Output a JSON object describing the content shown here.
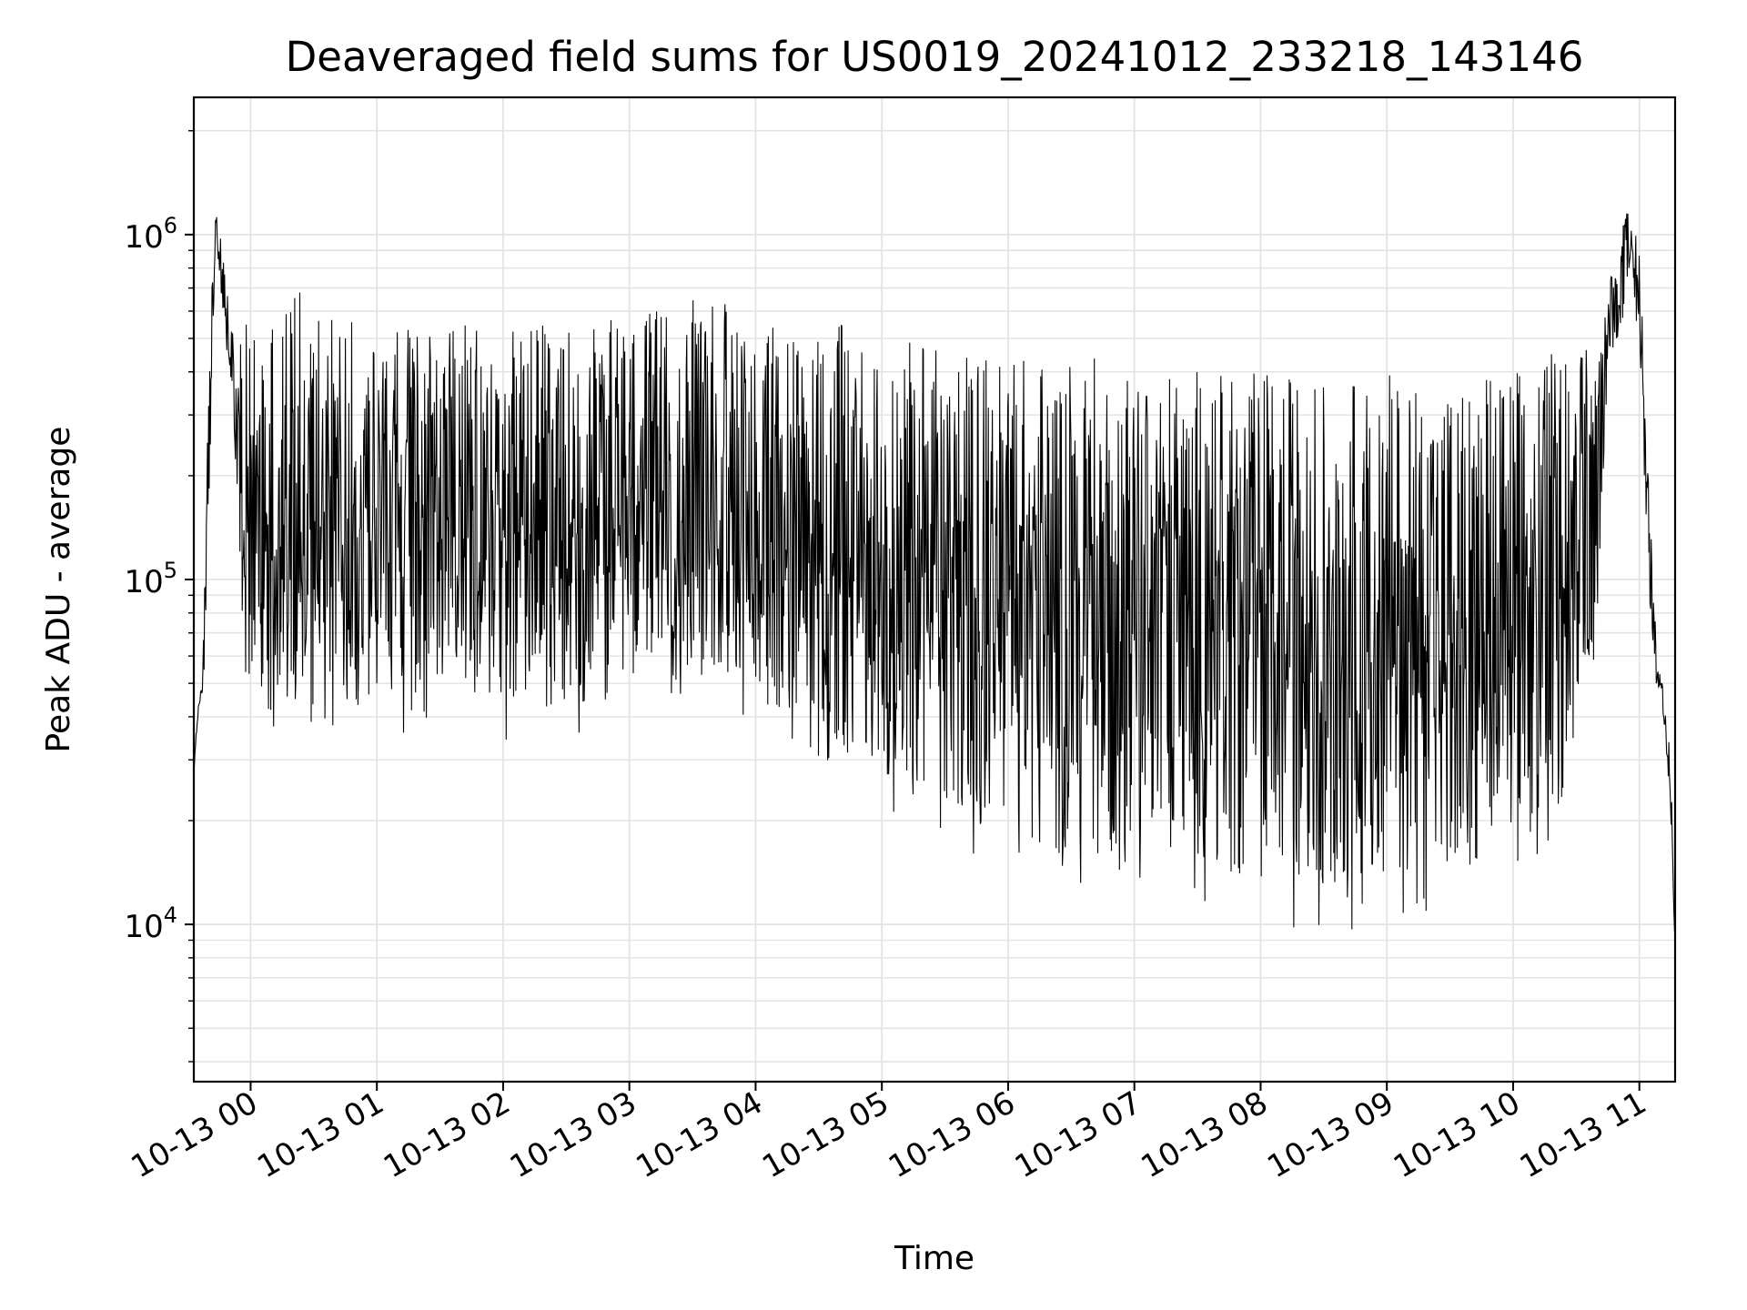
{
  "chart_data": {
    "type": "line",
    "title": "Deaveraged field sums for US0019_20241012_233218_143146",
    "xlabel": "Time",
    "ylabel": "Peak ADU - average",
    "yscale": "log",
    "ylim": [
      3500,
      2500000
    ],
    "xlim": [
      "2024-10-12 23:33",
      "2024-10-13 11:17"
    ],
    "x_ticks": [
      "10-13 00",
      "10-13 01",
      "10-13 02",
      "10-13 03",
      "10-13 04",
      "10-13 05",
      "10-13 06",
      "10-13 07",
      "10-13 08",
      "10-13 09",
      "10-13 10",
      "10-13 11"
    ],
    "y_ticks": [
      {
        "base": "10",
        "exp": "4",
        "value": 10000
      },
      {
        "base": "10",
        "exp": "5",
        "value": 100000
      },
      {
        "base": "10",
        "exp": "6",
        "value": 1000000
      }
    ],
    "grid": true,
    "line_color": "#000000",
    "series": [
      {
        "x": [
          "2024-10-12 23:33",
          "2024-10-12 23:35",
          "2024-10-12 23:37",
          "2024-10-12 23:39",
          "2024-10-12 23:42",
          "2024-10-12 23:44",
          "2024-10-12 23:47",
          "2024-10-12 23:50",
          "2024-10-12 23:54",
          "2024-10-12 23:57",
          "2024-10-13 00:00",
          "2024-10-13 00:04",
          "2024-10-13 00:10",
          "2024-10-13 00:20",
          "2024-10-13 00:30",
          "2024-10-13 00:45",
          "2024-10-13 01:00",
          "2024-10-13 01:15",
          "2024-10-13 01:30",
          "2024-10-13 01:45",
          "2024-10-13 02:00",
          "2024-10-13 02:15",
          "2024-10-13 02:30",
          "2024-10-13 02:45",
          "2024-10-13 03:00",
          "2024-10-13 03:15",
          "2024-10-13 03:30",
          "2024-10-13 03:45",
          "2024-10-13 04:00",
          "2024-10-13 04:15",
          "2024-10-13 04:30",
          "2024-10-13 04:45",
          "2024-10-13 05:00",
          "2024-10-13 05:15",
          "2024-10-13 05:30",
          "2024-10-13 05:45",
          "2024-10-13 06:00",
          "2024-10-13 06:15",
          "2024-10-13 06:30",
          "2024-10-13 06:45",
          "2024-10-13 07:00",
          "2024-10-13 07:15",
          "2024-10-13 07:30",
          "2024-10-13 07:45",
          "2024-10-13 08:00",
          "2024-10-13 08:15",
          "2024-10-13 08:30",
          "2024-10-13 08:45",
          "2024-10-13 09:00",
          "2024-10-13 09:15",
          "2024-10-13 09:30",
          "2024-10-13 09:45",
          "2024-10-13 10:00",
          "2024-10-13 10:15",
          "2024-10-13 10:30",
          "2024-10-13 10:40",
          "2024-10-13 10:45",
          "2024-10-13 10:50",
          "2024-10-13 10:55",
          "2024-10-13 11:00",
          "2024-10-13 11:03",
          "2024-10-13 11:06",
          "2024-10-13 11:09",
          "2024-10-13 11:12",
          "2024-10-13 11:15",
          "2024-10-13 11:17"
        ],
        "high": [
          30000,
          45000,
          50000,
          200000,
          900000,
          1300000,
          1000000,
          600000,
          450000,
          550000,
          600000,
          650000,
          650000,
          700000,
          650000,
          600000,
          550000,
          550000,
          550000,
          550000,
          550000,
          550000,
          550000,
          550000,
          600000,
          600000,
          650000,
          650000,
          600000,
          550000,
          550000,
          550000,
          500000,
          500000,
          480000,
          480000,
          450000,
          450000,
          450000,
          450000,
          450000,
          420000,
          420000,
          400000,
          400000,
          400000,
          380000,
          380000,
          400000,
          400000,
          400000,
          400000,
          420000,
          450000,
          500000,
          500000,
          700000,
          1000000,
          1200000,
          1000000,
          300000,
          120000,
          60000,
          45000,
          30000,
          10000
        ],
        "low": [
          25000,
          40000,
          45000,
          60000,
          500000,
          700000,
          550000,
          400000,
          150000,
          40000,
          30000,
          30000,
          30000,
          30000,
          30000,
          32000,
          35000,
          35000,
          35000,
          33000,
          32000,
          32000,
          32000,
          33000,
          35000,
          38000,
          40000,
          40000,
          35000,
          28000,
          25000,
          22000,
          20000,
          18000,
          15000,
          14000,
          14000,
          12000,
          11000,
          12000,
          12000,
          12000,
          11000,
          10000,
          9000,
          9000,
          9000,
          9000,
          9500,
          10000,
          10000,
          10000,
          10000,
          11000,
          30000,
          60000,
          400000,
          500000,
          550000,
          500000,
          120000,
          60000,
          45000,
          35000,
          20000,
          8000
        ]
      }
    ]
  }
}
